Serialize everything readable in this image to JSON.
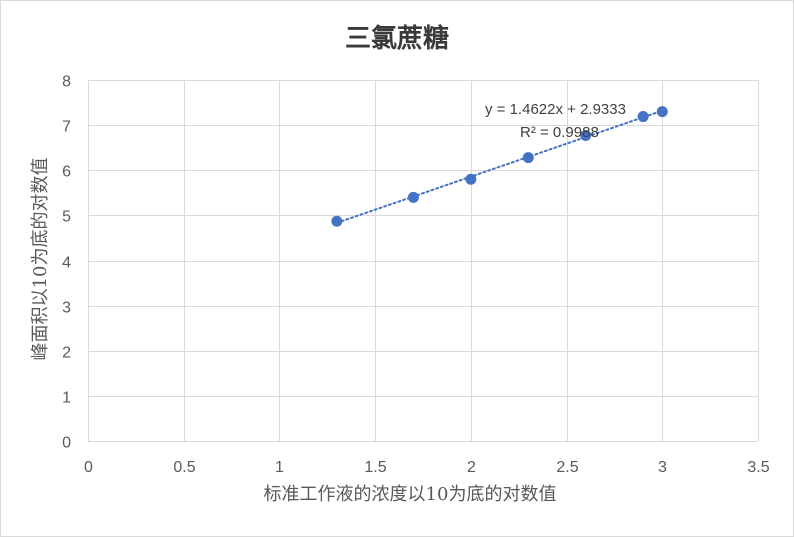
{
  "chart_data": {
    "type": "scatter",
    "title": "三氯蔗糖",
    "xlabel": "标准工作液的浓度以10为底的对数值",
    "ylabel": "峰面积以10为底的对数值",
    "xlim": [
      0,
      3.5
    ],
    "ylim": [
      0,
      8
    ],
    "xticks": [
      "0",
      "0.5",
      "1",
      "1.5",
      "2",
      "2.5",
      "3",
      "3.5"
    ],
    "yticks": [
      "0",
      "1",
      "2",
      "3",
      "4",
      "5",
      "6",
      "7",
      "8"
    ],
    "grid": true,
    "series": [
      {
        "x": [
          1.3,
          1.7,
          2.0,
          2.3,
          2.6,
          2.9,
          3.0
        ],
        "y": [
          4.87,
          5.4,
          5.8,
          6.28,
          6.77,
          7.19,
          7.3
        ],
        "color": "#4472C4"
      }
    ],
    "trendline": {
      "type": "linear",
      "style": "dotted",
      "slope": 1.4622,
      "intercept": 2.9333,
      "equation": "y = 1.4622x + 2.9333",
      "r_squared_label": "R² = 0.9988",
      "color": "#4472C4"
    }
  },
  "colors": {
    "gridline": "#d9d9d9",
    "tick_text": "#595959",
    "title_text": "#3a3a3a"
  }
}
